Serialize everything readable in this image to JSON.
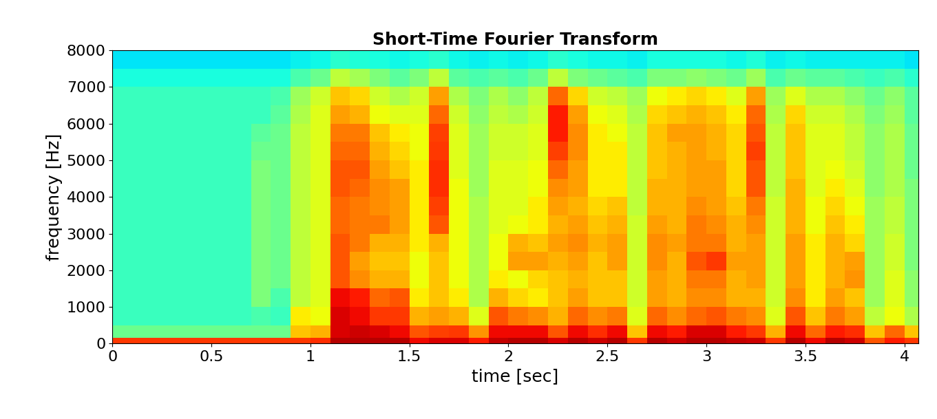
{
  "chart_data": {
    "type": "heatmap",
    "title": "Short-Time Fourier Transform",
    "x_label": "time [sec]",
    "y_label": "frequency [Hz]",
    "xlim": [
      0,
      4.07
    ],
    "xticks": [
      0,
      0.5,
      1,
      1.5,
      2,
      2.5,
      3,
      3.5,
      4
    ],
    "ylim": [
      0,
      8000
    ],
    "yticks": [
      0,
      1000,
      2000,
      3000,
      4000,
      5000,
      6000,
      7000,
      8000
    ],
    "time_bins": [
      0,
      0.1,
      0.2,
      0.3,
      0.4,
      0.5,
      0.6,
      0.7,
      0.8,
      0.9,
      1.0,
      1.1,
      1.2,
      1.3,
      1.4,
      1.5,
      1.6,
      1.7,
      1.8,
      1.9,
      2.0,
      2.1,
      2.2,
      2.3,
      2.4,
      2.5,
      2.6,
      2.7,
      2.8,
      2.9,
      3.0,
      3.1,
      3.2,
      3.3,
      3.4,
      3.5,
      3.6,
      3.7,
      3.8,
      3.9,
      4.0,
      4.1
    ],
    "frequency_bins": [
      0,
      150,
      500,
      1000,
      1500,
      2000,
      2500,
      3000,
      3500,
      4000,
      4500,
      5000,
      5500,
      6000,
      6500,
      7000,
      7500,
      8000
    ],
    "zlim": [
      0,
      100
    ],
    "cells": [
      [
        85,
        48,
        42,
        42,
        42,
        42,
        42,
        42,
        42,
        42,
        42,
        42,
        42,
        42,
        42,
        38,
        35
      ],
      [
        85,
        48,
        42,
        42,
        42,
        42,
        42,
        42,
        42,
        42,
        42,
        42,
        42,
        42,
        42,
        38,
        35
      ],
      [
        85,
        48,
        42,
        42,
        42,
        42,
        42,
        42,
        42,
        42,
        42,
        42,
        42,
        42,
        42,
        38,
        35
      ],
      [
        85,
        48,
        42,
        42,
        42,
        42,
        42,
        42,
        42,
        42,
        42,
        42,
        42,
        42,
        42,
        38,
        35
      ],
      [
        85,
        48,
        42,
        42,
        42,
        42,
        42,
        42,
        42,
        42,
        42,
        42,
        42,
        42,
        42,
        38,
        35
      ],
      [
        85,
        48,
        42,
        42,
        42,
        42,
        42,
        42,
        42,
        42,
        42,
        42,
        42,
        42,
        42,
        38,
        35
      ],
      [
        85,
        48,
        42,
        42,
        42,
        42,
        42,
        42,
        42,
        42,
        42,
        42,
        42,
        42,
        42,
        38,
        35
      ],
      [
        85,
        48,
        44,
        50,
        50,
        50,
        50,
        50,
        50,
        50,
        50,
        48,
        46,
        42,
        42,
        38,
        35
      ],
      [
        85,
        48,
        42,
        44,
        48,
        48,
        48,
        48,
        48,
        48,
        48,
        48,
        48,
        46,
        44,
        38,
        35
      ],
      [
        85,
        70,
        66,
        58,
        58,
        58,
        58,
        58,
        58,
        58,
        58,
        58,
        58,
        56,
        54,
        44,
        36
      ],
      [
        86,
        72,
        64,
        62,
        62,
        62,
        62,
        62,
        62,
        62,
        62,
        62,
        62,
        62,
        60,
        48,
        37
      ],
      [
        95,
        92,
        92,
        90,
        82,
        82,
        82,
        80,
        80,
        82,
        82,
        80,
        78,
        74,
        70,
        58,
        40
      ],
      [
        95,
        93,
        90,
        88,
        76,
        74,
        78,
        78,
        78,
        80,
        82,
        80,
        78,
        72,
        68,
        55,
        39
      ],
      [
        95,
        92,
        85,
        80,
        72,
        70,
        72,
        78,
        76,
        76,
        74,
        72,
        70,
        64,
        60,
        50,
        38
      ],
      [
        95,
        90,
        85,
        82,
        72,
        70,
        72,
        74,
        74,
        74,
        70,
        68,
        66,
        62,
        56,
        46,
        37
      ],
      [
        90,
        82,
        72,
        66,
        64,
        64,
        66,
        66,
        66,
        66,
        66,
        64,
        64,
        62,
        60,
        50,
        38
      ],
      [
        92,
        84,
        74,
        70,
        70,
        70,
        72,
        82,
        84,
        86,
        86,
        85,
        84,
        80,
        74,
        58,
        40
      ],
      [
        92,
        85,
        72,
        66,
        64,
        64,
        64,
        64,
        64,
        64,
        62,
        62,
        62,
        60,
        56,
        46,
        37
      ],
      [
        88,
        75,
        62,
        56,
        56,
        56,
        56,
        56,
        56,
        54,
        54,
        54,
        54,
        52,
        50,
        44,
        36
      ],
      [
        94,
        90,
        82,
        72,
        66,
        64,
        64,
        62,
        62,
        62,
        62,
        60,
        60,
        58,
        56,
        46,
        37
      ],
      [
        95,
        90,
        78,
        68,
        64,
        74,
        72,
        64,
        62,
        62,
        62,
        60,
        60,
        56,
        52,
        44,
        36
      ],
      [
        95,
        90,
        76,
        66,
        68,
        74,
        70,
        66,
        66,
        64,
        64,
        62,
        62,
        60,
        58,
        48,
        37
      ],
      [
        92,
        82,
        72,
        70,
        70,
        72,
        74,
        72,
        74,
        76,
        80,
        84,
        88,
        88,
        80,
        58,
        40
      ],
      [
        95,
        90,
        80,
        74,
        72,
        74,
        76,
        74,
        72,
        74,
        74,
        76,
        76,
        74,
        68,
        50,
        38
      ],
      [
        93,
        86,
        76,
        70,
        70,
        70,
        72,
        70,
        68,
        66,
        66,
        66,
        66,
        64,
        60,
        48,
        37
      ],
      [
        95,
        90,
        78,
        70,
        70,
        74,
        74,
        72,
        70,
        66,
        66,
        66,
        64,
        62,
        58,
        46,
        37
      ],
      [
        85,
        70,
        62,
        60,
        60,
        60,
        60,
        60,
        58,
        58,
        58,
        58,
        58,
        56,
        54,
        44,
        36
      ],
      [
        95,
        90,
        80,
        74,
        74,
        76,
        76,
        74,
        72,
        72,
        70,
        70,
        70,
        68,
        64,
        50,
        38
      ],
      [
        93,
        88,
        76,
        72,
        72,
        72,
        74,
        72,
        72,
        72,
        72,
        72,
        74,
        70,
        66,
        50,
        38
      ],
      [
        95,
        92,
        80,
        76,
        78,
        82,
        78,
        78,
        76,
        74,
        74,
        74,
        74,
        72,
        68,
        52,
        38
      ],
      [
        95,
        92,
        82,
        76,
        78,
        85,
        78,
        76,
        74,
        74,
        74,
        72,
        72,
        70,
        66,
        50,
        38
      ],
      [
        94,
        88,
        78,
        72,
        72,
        74,
        72,
        72,
        70,
        68,
        68,
        68,
        68,
        66,
        62,
        48,
        37
      ],
      [
        93,
        85,
        76,
        72,
        74,
        74,
        74,
        76,
        78,
        82,
        82,
        84,
        82,
        80,
        74,
        54,
        39
      ],
      [
        85,
        72,
        62,
        60,
        60,
        60,
        60,
        60,
        60,
        58,
        58,
        58,
        58,
        56,
        54,
        44,
        36
      ],
      [
        95,
        90,
        82,
        76,
        74,
        74,
        74,
        72,
        72,
        72,
        70,
        70,
        70,
        68,
        62,
        48,
        37
      ],
      [
        90,
        80,
        70,
        66,
        66,
        66,
        66,
        64,
        64,
        62,
        62,
        62,
        62,
        60,
        56,
        46,
        36
      ],
      [
        95,
        88,
        78,
        74,
        72,
        72,
        72,
        70,
        68,
        66,
        64,
        62,
        62,
        60,
        56,
        46,
        36
      ],
      [
        93,
        86,
        74,
        70,
        75,
        74,
        68,
        66,
        64,
        62,
        60,
        58,
        58,
        56,
        52,
        44,
        36
      ],
      [
        82,
        70,
        58,
        54,
        54,
        54,
        54,
        54,
        54,
        52,
        52,
        52,
        52,
        50,
        48,
        42,
        36
      ],
      [
        88,
        80,
        64,
        62,
        62,
        60,
        60,
        58,
        58,
        56,
        56,
        56,
        56,
        54,
        52,
        44,
        36
      ],
      [
        85,
        70,
        56,
        52,
        52,
        50,
        50,
        50,
        50,
        50,
        48,
        48,
        48,
        46,
        46,
        40,
        35
      ]
    ]
  }
}
